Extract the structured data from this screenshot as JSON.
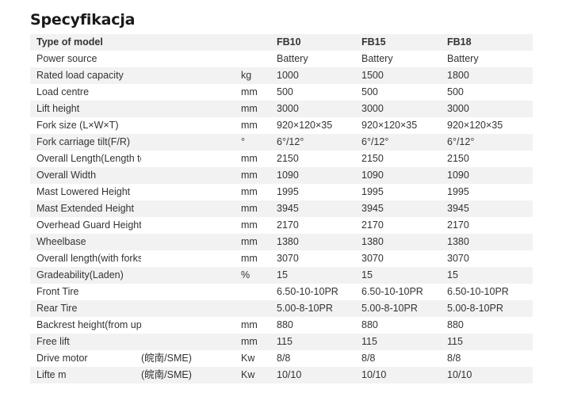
{
  "page_title": "Specyfikacja",
  "table": {
    "header": {
      "param": "Type of model",
      "note": "",
      "unit": "",
      "fb10": "FB10",
      "fb15": "FB15",
      "fb18": "FB18"
    },
    "rows": [
      {
        "param": "Power source",
        "note": "",
        "unit": "",
        "fb10": "Battery",
        "fb15": "Battery",
        "fb18": "Battery"
      },
      {
        "param": "Rated load capacity",
        "note": "",
        "unit": "kg",
        "fb10": "1000",
        "fb15": "1500",
        "fb18": "1800"
      },
      {
        "param": "Load centre",
        "note": "",
        "unit": "mm",
        "fb10": "500",
        "fb15": "500",
        "fb18": "500"
      },
      {
        "param": "Lift height",
        "note": "",
        "unit": "mm",
        "fb10": "3000",
        "fb15": "3000",
        "fb18": "3000"
      },
      {
        "param": "Fork size (L×W×T)",
        "note": "",
        "unit": "mm",
        "fb10": "920×120×35",
        "fb15": "920×120×35",
        "fb18": "920×120×35"
      },
      {
        "param": "Fork carriage tilt(F/R)",
        "note": "",
        "unit": "°",
        "fb10": "6°/12°",
        "fb15": "6°/12°",
        "fb18": "6°/12°"
      },
      {
        "param": "Overall Length(Length to fork face)",
        "note": "",
        "unit": "mm",
        "fb10": "2150",
        "fb15": "2150",
        "fb18": "2150"
      },
      {
        "param": "Overall Width",
        "note": "",
        "unit": "mm",
        "fb10": "1090",
        "fb15": "1090",
        "fb18": "1090"
      },
      {
        "param": "Mast Lowered Height",
        "note": "",
        "unit": "mm",
        "fb10": "1995",
        "fb15": "1995",
        "fb18": "1995"
      },
      {
        "param": "Mast Extended Height",
        "note": "",
        "unit": "mm",
        "fb10": "3945",
        "fb15": "3945",
        "fb18": "3945"
      },
      {
        "param": "Overhead Guard Height",
        "note": "",
        "unit": "mm",
        "fb10": "2170",
        "fb15": "2170",
        "fb18": "2170"
      },
      {
        "param": "Wheelbase",
        "note": "",
        "unit": "mm",
        "fb10": "1380",
        "fb15": "1380",
        "fb18": "1380"
      },
      {
        "param": "Overall length(with forks)",
        "note": "",
        "unit": "mm",
        "fb10": "3070",
        "fb15": "3070",
        "fb18": "3070"
      },
      {
        "param": "Gradeability(Laden)",
        "note": "",
        "unit": "%",
        "fb10": "15",
        "fb15": "15",
        "fb18": "15"
      },
      {
        "param": "Front Tire",
        "note": "",
        "unit": "",
        "fb10": "6.50-10-10PR",
        "fb15": "6.50-10-10PR",
        "fb18": "6.50-10-10PR"
      },
      {
        "param": "Rear Tire",
        "note": "",
        "unit": "",
        "fb10": "5.00-8-10PR",
        "fb15": "5.00-8-10PR",
        "fb18": "5.00-8-10PR"
      },
      {
        "param": "Backrest height(from upper fork face)",
        "note": "",
        "unit": "mm",
        "fb10": "880",
        "fb15": "880",
        "fb18": "880"
      },
      {
        "param": "Free lift",
        "note": "",
        "unit": "mm",
        "fb10": "115",
        "fb15": "115",
        "fb18": "115"
      },
      {
        "param": "Drive motor",
        "note": "(皖南/SME)",
        "unit": "Kw",
        "fb10": "8/8",
        "fb15": "8/8",
        "fb18": "8/8"
      },
      {
        "param": "Lifte m",
        "note": "(皖南/SME)",
        "unit": "Kw",
        "fb10": "10/10",
        "fb15": "10/10",
        "fb18": "10/10"
      }
    ]
  }
}
